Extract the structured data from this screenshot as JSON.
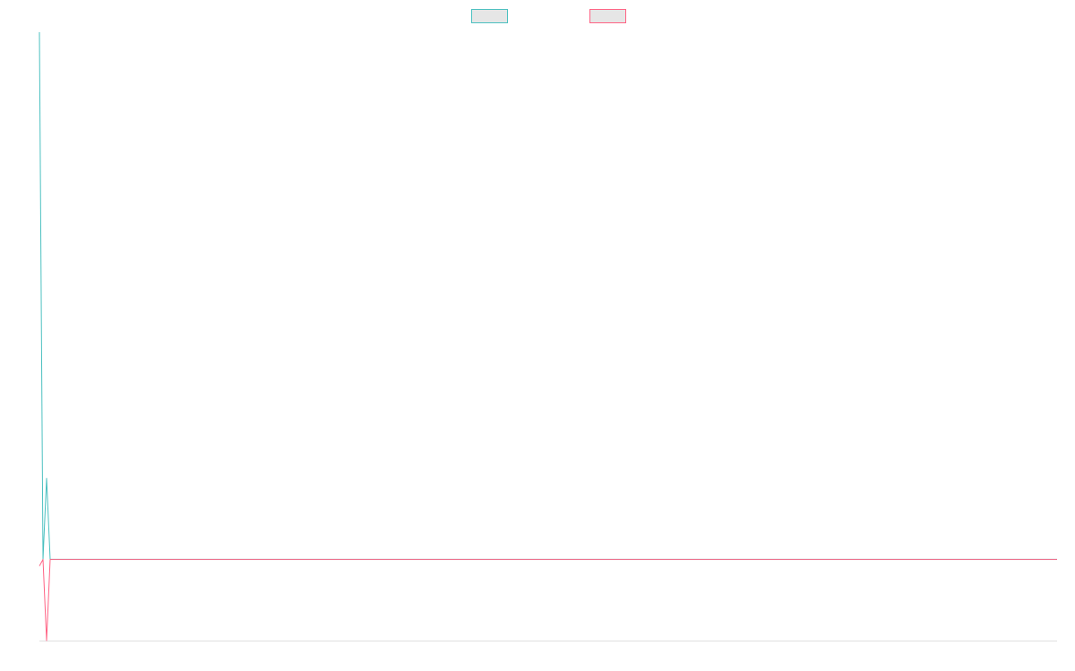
{
  "chart_data": {
    "type": "line",
    "x": [
      0,
      1,
      2,
      3,
      284
    ],
    "xlim": [
      0,
      284
    ],
    "ylim": [
      -1,
      6.5
    ],
    "series": [
      {
        "color": "#4bc0c0",
        "values": [
          6.5,
          0,
          1,
          0,
          0
        ]
      },
      {
        "color": "#ff6384",
        "values": [
          -0.08,
          0,
          -1,
          0,
          0
        ]
      }
    ],
    "legend": "top"
  }
}
